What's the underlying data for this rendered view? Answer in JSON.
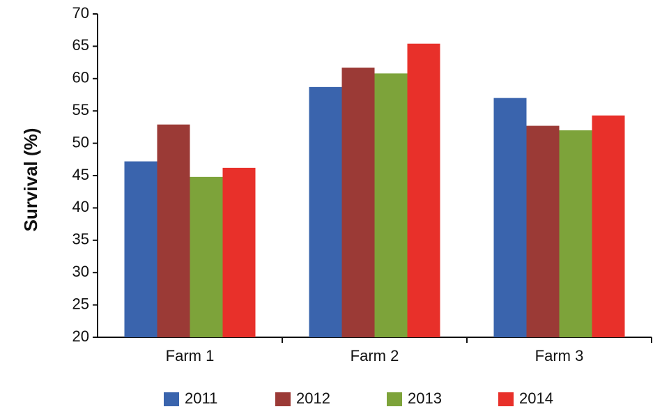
{
  "chart_data": {
    "type": "bar",
    "y_label": "Survival (%)",
    "categories": [
      "Farm 1",
      "Farm 2",
      "Farm 3"
    ],
    "series": [
      {
        "name": "2011",
        "color": "#3a64ad",
        "values": [
          47.2,
          58.7,
          57.0
        ]
      },
      {
        "name": "2012",
        "color": "#9b3a36",
        "values": [
          52.9,
          61.7,
          52.7
        ]
      },
      {
        "name": "2013",
        "color": "#7da33a",
        "values": [
          44.8,
          60.8,
          52.0
        ]
      },
      {
        "name": "2014",
        "color": "#e8302a",
        "values": [
          46.2,
          65.4,
          54.3
        ]
      }
    ],
    "ylim": [
      20,
      70
    ],
    "yticks": [
      20,
      25,
      30,
      35,
      40,
      45,
      50,
      55,
      60,
      65,
      70
    ],
    "legend": "bottom"
  }
}
